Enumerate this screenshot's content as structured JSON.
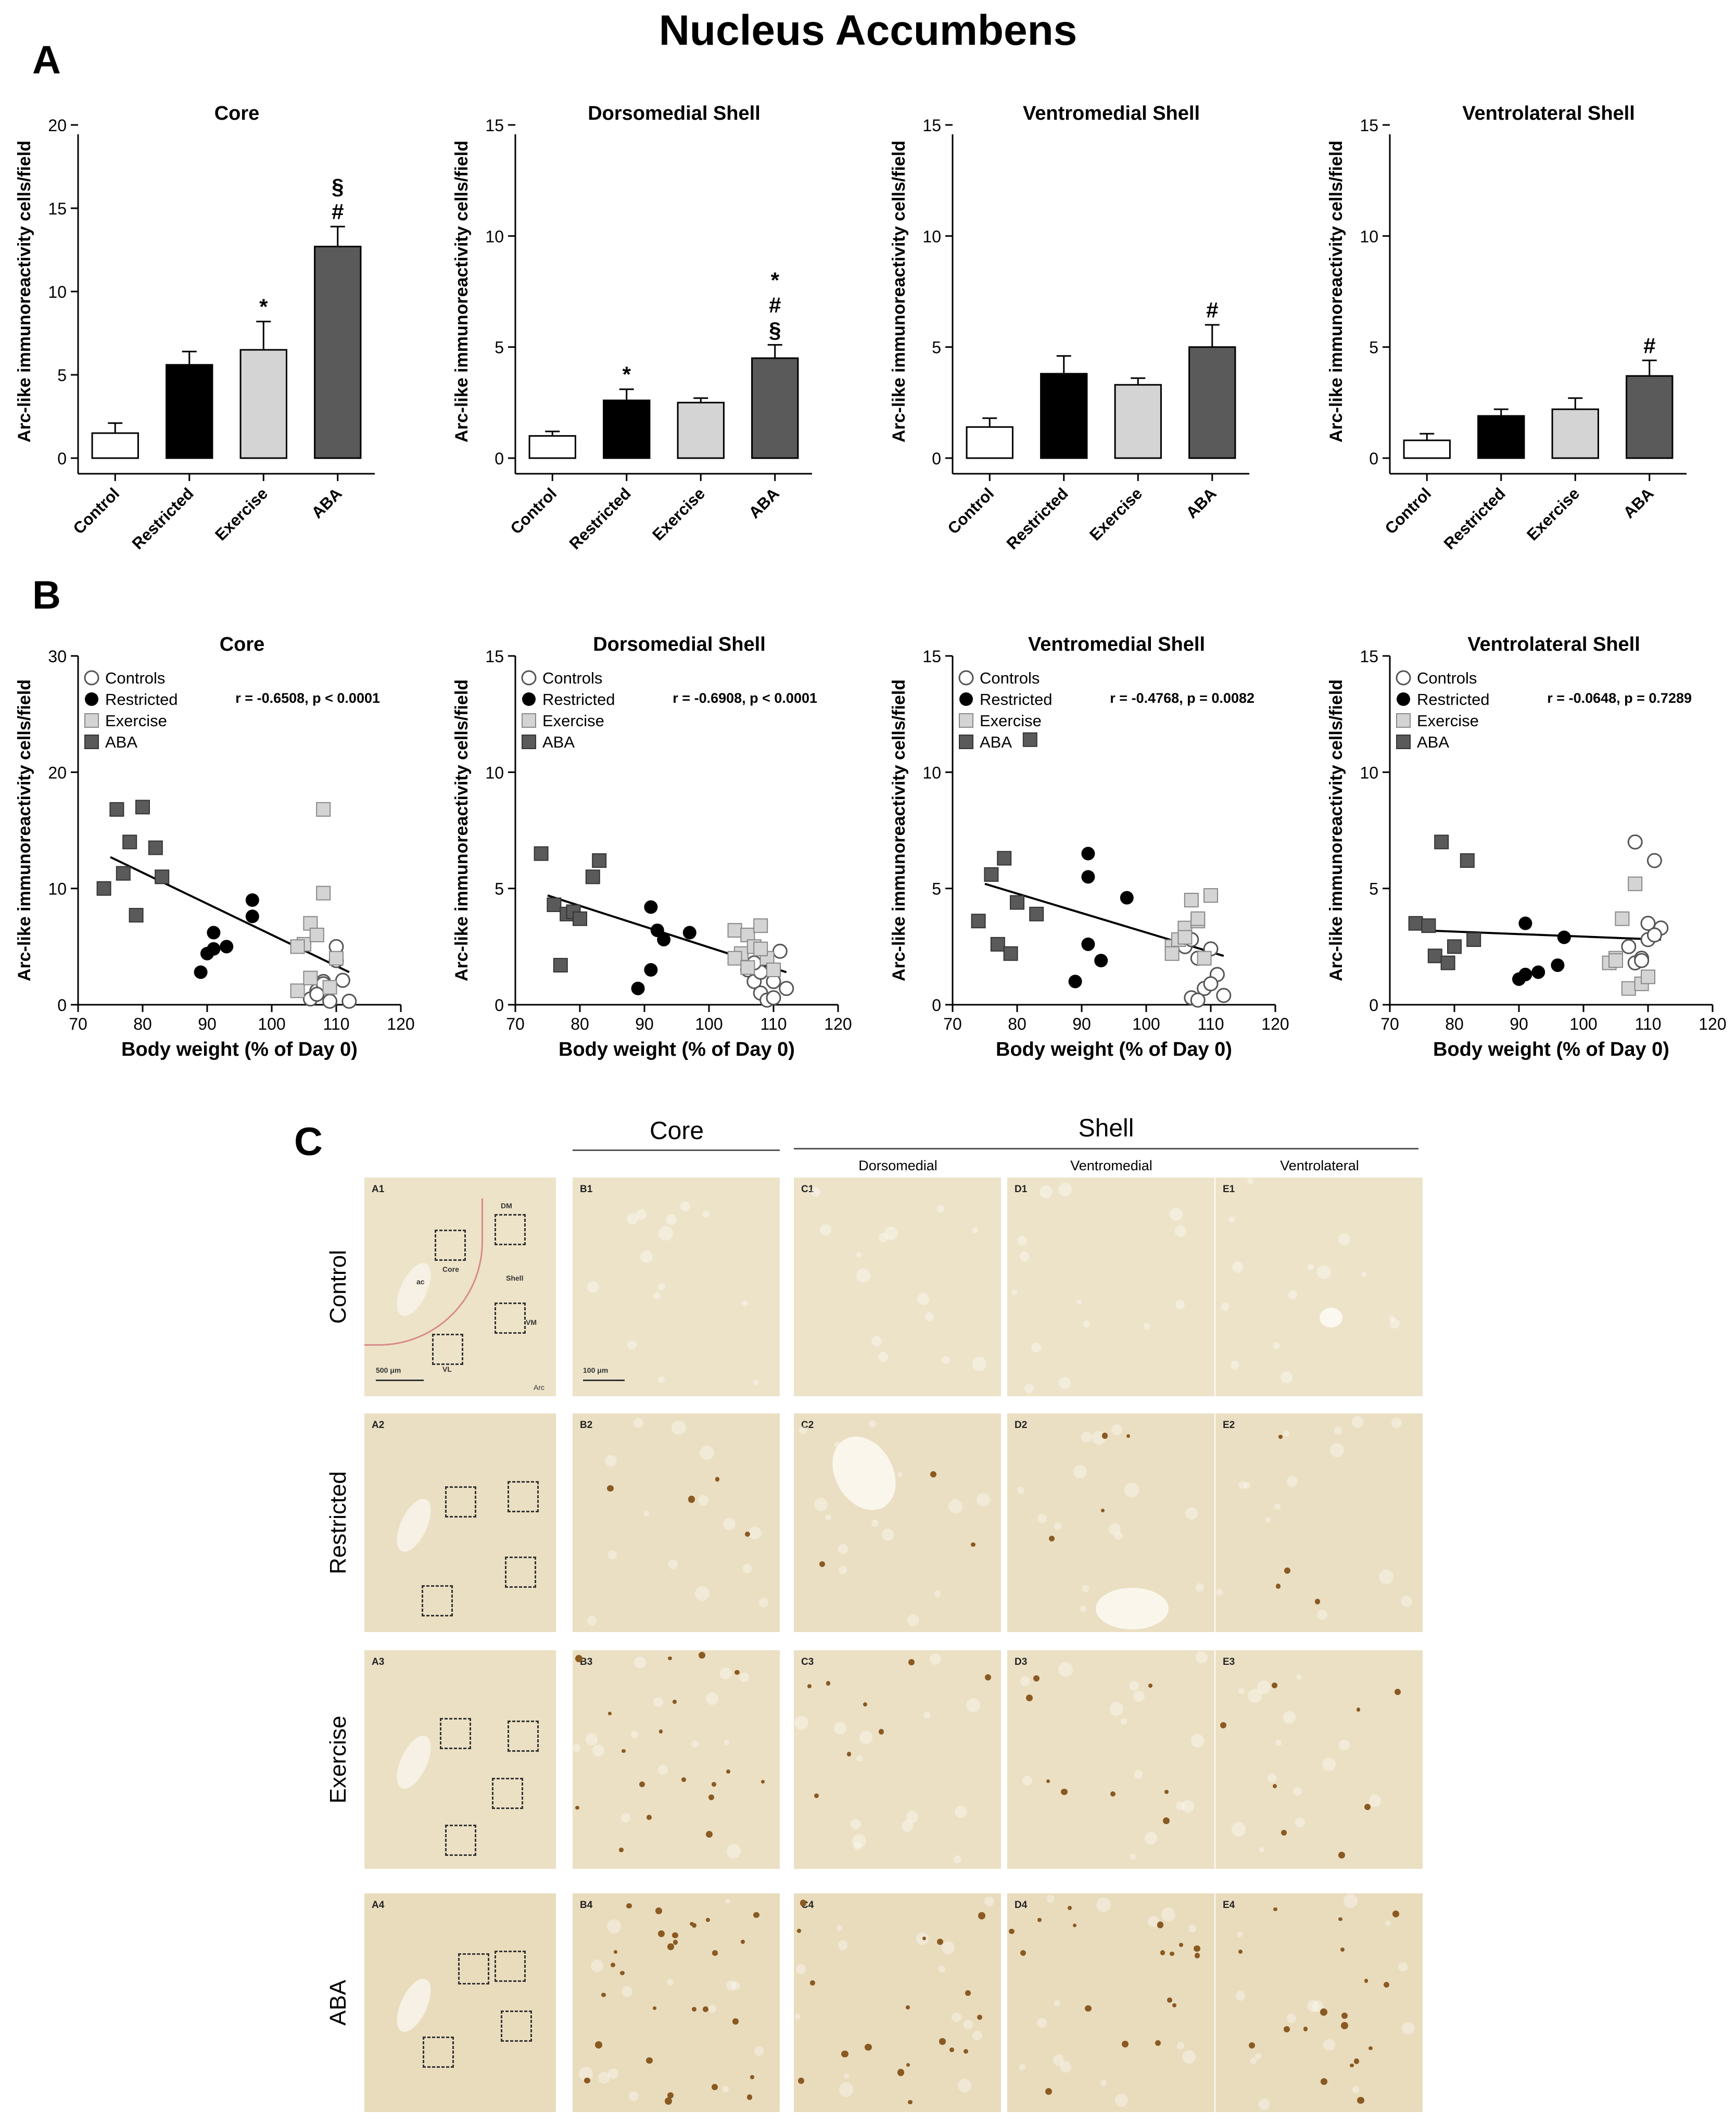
{
  "title": "Nucleus Accumbens",
  "panels": {
    "a": "A",
    "b": "B",
    "c": "C"
  },
  "legend": [
    "Controls",
    "Restricted",
    "Exercise",
    "ABA"
  ],
  "ylabel": "Arc-like immunoreactivity cells/field",
  "xlabel": "Body weight (% of Day 0)",
  "colors": {
    "control": "#ffffff",
    "restricted": "#000000",
    "exercise": "#d4d4d4",
    "aba": "#5a5a5a"
  },
  "chart_data": [
    {
      "type": "bar",
      "title": "Core",
      "categories": [
        "Control",
        "Restricted",
        "Exercise",
        "ABA"
      ],
      "values": [
        1.5,
        5.6,
        6.5,
        12.7
      ],
      "errors": [
        0.6,
        0.8,
        1.7,
        1.2
      ],
      "annotations": [
        [],
        [],
        [
          "*"
        ],
        [
          "§",
          "#"
        ]
      ],
      "ylabel": "Arc-like immunoreactivity cells/field",
      "ylim": [
        0,
        20
      ],
      "yticks": [
        0,
        5,
        10,
        15,
        20
      ]
    },
    {
      "type": "bar",
      "title": "Dorsomedial Shell",
      "categories": [
        "Control",
        "Restricted",
        "Exercise",
        "ABA"
      ],
      "values": [
        1.0,
        2.6,
        2.5,
        4.5
      ],
      "errors": [
        0.2,
        0.5,
        0.2,
        0.6
      ],
      "annotations": [
        [],
        [
          "*"
        ],
        [],
        [
          "*",
          "#",
          "§"
        ]
      ],
      "ylabel": "Arc-like immunoreactivity cells/field",
      "ylim": [
        0,
        15
      ],
      "yticks": [
        0,
        5,
        10,
        15
      ]
    },
    {
      "type": "bar",
      "title": "Ventromedial Shell",
      "categories": [
        "Control",
        "Restricted",
        "Exercise",
        "ABA"
      ],
      "values": [
        1.4,
        3.8,
        3.3,
        5.0
      ],
      "errors": [
        0.4,
        0.8,
        0.3,
        1.0
      ],
      "annotations": [
        [],
        [],
        [],
        [
          "#"
        ]
      ],
      "ylabel": "Arc-like immunoreactivity cells/field",
      "ylim": [
        0,
        15
      ],
      "yticks": [
        0,
        5,
        10,
        15
      ]
    },
    {
      "type": "bar",
      "title": "Ventrolateral Shell",
      "categories": [
        "Control",
        "Restricted",
        "Exercise",
        "ABA"
      ],
      "values": [
        0.8,
        1.9,
        2.2,
        3.7
      ],
      "errors": [
        0.3,
        0.3,
        0.5,
        0.7
      ],
      "annotations": [
        [],
        [],
        [],
        [
          "#"
        ]
      ],
      "ylabel": "Arc-like immunoreactivity cells/field",
      "ylim": [
        0,
        15
      ],
      "yticks": [
        0,
        5,
        10,
        15
      ]
    },
    {
      "type": "scatter",
      "title": "Core",
      "stat": "r = -0.6508, p < 0.0001",
      "xlabel": "Body weight (% of Day 0)",
      "ylabel": "Arc-like immunoreactivity cells/field",
      "xlim": [
        70,
        120
      ],
      "ylim": [
        0,
        30
      ],
      "xticks": [
        70,
        80,
        90,
        100,
        110,
        120
      ],
      "yticks": [
        0,
        10,
        20,
        30
      ],
      "fit": [
        [
          75,
          12.7
        ],
        [
          112,
          2.8
        ]
      ],
      "series": [
        {
          "name": "Controls",
          "x": [
            106,
            107,
            108,
            109,
            110,
            110,
            111,
            112,
            108,
            107
          ],
          "y": [
            0.5,
            1.2,
            2.0,
            0.3,
            5.0,
            3.8,
            2.1,
            0.3,
            1.8,
            0.9
          ]
        },
        {
          "name": "Restricted",
          "x": [
            89,
            91,
            91,
            93,
            97,
            97,
            90
          ],
          "y": [
            2.8,
            6.2,
            4.8,
            5.0,
            9.0,
            7.6,
            4.4
          ]
        },
        {
          "name": "Exercise",
          "x": [
            104,
            105,
            106,
            107,
            108,
            108,
            109,
            110,
            104,
            106
          ],
          "y": [
            1.2,
            5.2,
            7.0,
            6.0,
            9.6,
            16.8,
            1.5,
            4.0,
            5.0,
            2.3
          ]
        },
        {
          "name": "ABA",
          "x": [
            74,
            76,
            77,
            78,
            79,
            80,
            82,
            83
          ],
          "y": [
            10.0,
            16.8,
            11.3,
            14.0,
            7.7,
            17.0,
            13.5,
            11.0
          ]
        }
      ]
    },
    {
      "type": "scatter",
      "title": "Dorsomedial Shell",
      "stat": "r = -0.6908, p < 0.0001",
      "xlabel": "Body weight (% of Day 0)",
      "ylabel": "Arc-like immunoreactivity cells/field",
      "xlim": [
        70,
        120
      ],
      "ylim": [
        0,
        15
      ],
      "xticks": [
        70,
        80,
        90,
        100,
        110,
        120
      ],
      "yticks": [
        0,
        5,
        10,
        15
      ],
      "fit": [
        [
          75,
          4.7
        ],
        [
          112,
          1.4
        ]
      ],
      "series": [
        {
          "name": "Controls",
          "x": [
            106,
            107,
            108,
            109,
            110,
            111,
            112,
            108,
            110,
            107
          ],
          "y": [
            1.5,
            1.0,
            0.5,
            0.2,
            1.0,
            2.3,
            0.7,
            1.4,
            0.3,
            1.8
          ]
        },
        {
          "name": "Restricted",
          "x": [
            89,
            91,
            91,
            93,
            97,
            92
          ],
          "y": [
            0.7,
            1.5,
            4.2,
            2.8,
            3.1,
            3.2
          ]
        },
        {
          "name": "Exercise",
          "x": [
            104,
            105,
            106,
            107,
            108,
            109,
            110,
            104,
            106,
            108
          ],
          "y": [
            3.2,
            2.2,
            3.0,
            2.5,
            3.4,
            2.0,
            1.5,
            2.0,
            1.6,
            2.4
          ]
        },
        {
          "name": "ABA",
          "x": [
            74,
            76,
            77,
            78,
            79,
            80,
            82,
            83
          ],
          "y": [
            6.5,
            4.3,
            1.7,
            3.9,
            4.0,
            3.7,
            5.5,
            6.2
          ]
        }
      ]
    },
    {
      "type": "scatter",
      "title": "Ventromedial Shell",
      "stat": "r = -0.4768, p = 0.0082",
      "xlabel": "Body weight (% of Day 0)",
      "ylabel": "Arc-like immunoreactivity cells/field",
      "xlim": [
        70,
        120
      ],
      "ylim": [
        0,
        15
      ],
      "xticks": [
        70,
        80,
        90,
        100,
        110,
        120
      ],
      "yticks": [
        0,
        5,
        10,
        15
      ],
      "fit": [
        [
          75,
          5.2
        ],
        [
          112,
          2.1
        ]
      ],
      "series": [
        {
          "name": "Controls",
          "x": [
            106,
            107,
            108,
            109,
            110,
            111,
            112,
            108,
            110,
            107
          ],
          "y": [
            2.5,
            0.3,
            2.0,
            0.7,
            2.4,
            1.3,
            0.4,
            0.2,
            0.9,
            2.8
          ]
        },
        {
          "name": "Restricted",
          "x": [
            89,
            91,
            91,
            93,
            97,
            91
          ],
          "y": [
            1.0,
            6.5,
            5.5,
            1.9,
            4.6,
            2.6
          ]
        },
        {
          "name": "Exercise",
          "x": [
            104,
            105,
            106,
            107,
            108,
            109,
            110,
            104,
            106,
            108
          ],
          "y": [
            2.5,
            2.8,
            3.3,
            4.5,
            3.6,
            2.0,
            4.7,
            2.2,
            2.9,
            3.7
          ]
        },
        {
          "name": "ABA",
          "x": [
            74,
            76,
            77,
            78,
            79,
            80,
            82,
            83
          ],
          "y": [
            3.6,
            5.6,
            2.6,
            6.3,
            2.2,
            4.4,
            11.4,
            3.9
          ]
        }
      ]
    },
    {
      "type": "scatter",
      "title": "Ventrolateral Shell",
      "stat": "r = -0.0648, p = 0.7289",
      "xlabel": "Body weight (% of Day 0)",
      "ylabel": "Arc-like immunoreactivity cells/field",
      "xlim": [
        70,
        120
      ],
      "ylim": [
        0,
        15
      ],
      "xticks": [
        70,
        80,
        90,
        100,
        110,
        120
      ],
      "yticks": [
        0,
        5,
        10,
        15
      ],
      "fit": [
        [
          75,
          3.2
        ],
        [
          112,
          2.8
        ]
      ],
      "series": [
        {
          "name": "Controls",
          "x": [
            107,
            108,
            108,
            109,
            110,
            111,
            112,
            110,
            111,
            109
          ],
          "y": [
            2.5,
            1.8,
            7.0,
            2.0,
            3.5,
            6.2,
            3.3,
            2.8,
            3.0,
            1.9
          ]
        },
        {
          "name": "Restricted",
          "x": [
            90,
            91,
            91,
            93,
            96,
            97
          ],
          "y": [
            1.1,
            1.3,
            3.5,
            1.4,
            1.7,
            2.9
          ]
        },
        {
          "name": "Exercise",
          "x": [
            104,
            105,
            106,
            107,
            108,
            109,
            110,
            105
          ],
          "y": [
            1.8,
            2.0,
            3.7,
            0.7,
            5.2,
            0.9,
            1.2,
            1.9
          ]
        },
        {
          "name": "ABA",
          "x": [
            74,
            76,
            77,
            78,
            79,
            80,
            82,
            83
          ],
          "y": [
            3.5,
            3.4,
            2.1,
            7.0,
            1.8,
            2.5,
            6.2,
            2.8
          ]
        }
      ]
    }
  ],
  "micrographs": {
    "col_headers": {
      "core": "Core",
      "shell": "Shell",
      "dm": "Dorsomedial",
      "vm": "Ventromedial",
      "vl": "Ventrolateral"
    },
    "rows": [
      {
        "label": "Control",
        "tags": [
          "A1",
          "B1",
          "C1",
          "D1",
          "E1"
        ],
        "density": 0
      },
      {
        "label": "Restricted",
        "tags": [
          "A2",
          "B2",
          "C2",
          "D2",
          "E2"
        ],
        "density": 1
      },
      {
        "label": "Exercise",
        "tags": [
          "A3",
          "B3",
          "C3",
          "D3",
          "E3"
        ],
        "density": 2
      },
      {
        "label": "ABA",
        "tags": [
          "A4",
          "B4",
          "C4",
          "D4",
          "E4"
        ],
        "density": 3
      }
    ],
    "overview_labels": {
      "dm": "DM",
      "core": "Core",
      "shell": "Shell",
      "ac": "ac",
      "vm": "VM",
      "vl": "VL",
      "arc": "Arc"
    },
    "scale_overview": "500 μm",
    "scale_detail": "100 μm"
  }
}
